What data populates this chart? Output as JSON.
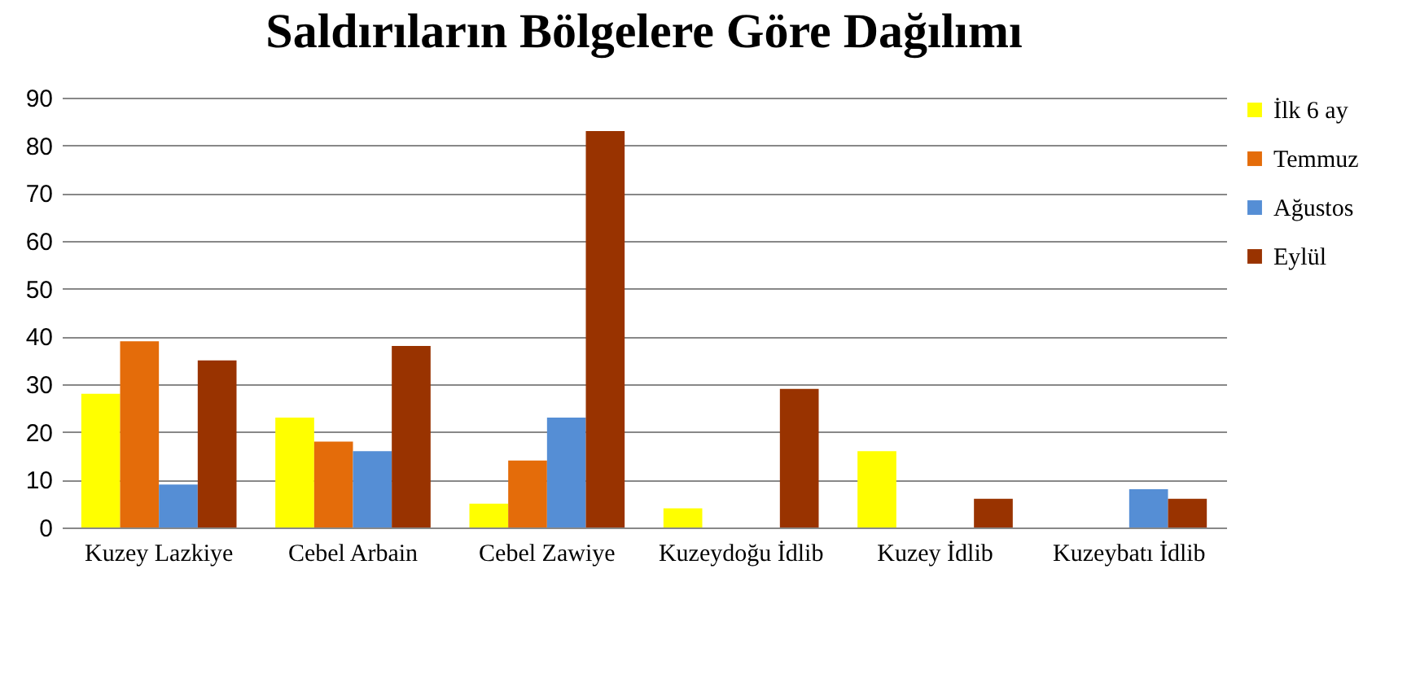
{
  "chart_data": {
    "type": "bar",
    "title": "Saldırıların Bölgelere Göre Dağılımı",
    "categories": [
      "Kuzey Lazkiye",
      "Cebel Arbain",
      "Cebel Zawiye",
      "Kuzeydoğu İdlib",
      "Kuzey İdlib",
      "Kuzeybatı İdlib"
    ],
    "series": [
      {
        "name": "İlk 6 ay",
        "color": "#ffff00",
        "values": [
          28,
          23,
          5,
          4,
          16,
          0
        ]
      },
      {
        "name": "Temmuz",
        "color": "#e46c0a",
        "values": [
          39,
          18,
          14,
          0,
          0,
          0
        ]
      },
      {
        "name": "Ağustos",
        "color": "#558ed5",
        "values": [
          9,
          16,
          23,
          0,
          0,
          8
        ]
      },
      {
        "name": "Eylül",
        "color": "#993300",
        "values": [
          35,
          38,
          83,
          29,
          6,
          6
        ]
      }
    ],
    "ylim": [
      0,
      90
    ],
    "yticks": [
      0,
      10,
      20,
      30,
      40,
      50,
      60,
      70,
      80,
      90
    ],
    "grid": "y",
    "legend": "right"
  }
}
